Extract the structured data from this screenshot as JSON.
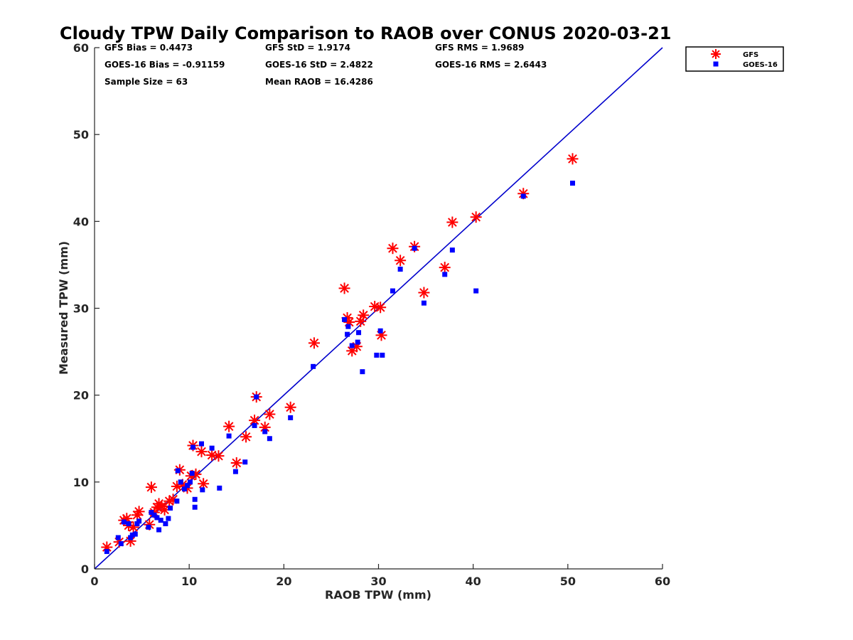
{
  "chart_data": {
    "type": "scatter",
    "title": "Cloudy TPW Daily Comparison to RAOB over CONUS 2020-03-21",
    "xlabel": "RAOB TPW (mm)",
    "ylabel": "Measured TPW (mm)",
    "xlim": [
      0,
      60
    ],
    "ylim": [
      0,
      60
    ],
    "xticks": [
      "0",
      "10",
      "20",
      "30",
      "40",
      "50",
      "60"
    ],
    "yticks": [
      "0",
      "10",
      "20",
      "30",
      "40",
      "50",
      "60"
    ],
    "grid": false,
    "legend_position": "top-right",
    "reference_line": {
      "x": [
        0,
        60
      ],
      "y": [
        0,
        60
      ],
      "color": "#0000cc"
    },
    "stats": [
      [
        "GFS Bias = 0.4473",
        "GFS StD = 1.9174",
        "GFS RMS = 1.9689"
      ],
      [
        "GOES-16 Bias = -0.91159",
        "GOES-16 StD = 2.4822",
        "GOES-16 RMS = 2.6443"
      ],
      [
        "Sample Size = 63",
        "Mean RAOB = 16.4286",
        ""
      ]
    ],
    "series": [
      {
        "name": "GFS",
        "marker": "asterisk",
        "color": "#ff0000",
        "points": [
          [
            1.3,
            2.5
          ],
          [
            2.6,
            3.1
          ],
          [
            3.1,
            5.6
          ],
          [
            3.4,
            5.8
          ],
          [
            3.6,
            5.0
          ],
          [
            3.8,
            3.2
          ],
          [
            4.1,
            4.8
          ],
          [
            4.5,
            6.2
          ],
          [
            4.7,
            6.6
          ],
          [
            5.8,
            5.1
          ],
          [
            6.0,
            9.4
          ],
          [
            6.3,
            6.5
          ],
          [
            6.6,
            7.1
          ],
          [
            6.8,
            7.5
          ],
          [
            7.1,
            7.2
          ],
          [
            7.4,
            6.8
          ],
          [
            7.9,
            7.8
          ],
          [
            8.3,
            8.0
          ],
          [
            8.7,
            9.5
          ],
          [
            9.0,
            11.4
          ],
          [
            9.3,
            9.7
          ],
          [
            9.8,
            9.3
          ],
          [
            10.2,
            10.7
          ],
          [
            10.4,
            14.2
          ],
          [
            10.7,
            10.9
          ],
          [
            11.3,
            13.5
          ],
          [
            11.5,
            9.8
          ],
          [
            12.4,
            13.1
          ],
          [
            13.1,
            13.0
          ],
          [
            14.2,
            16.4
          ],
          [
            15.0,
            12.2
          ],
          [
            16.0,
            15.2
          ],
          [
            16.9,
            17.1
          ],
          [
            17.1,
            19.8
          ],
          [
            18.0,
            16.3
          ],
          [
            18.5,
            17.8
          ],
          [
            20.7,
            18.6
          ],
          [
            23.2,
            26.0
          ],
          [
            26.4,
            32.3
          ],
          [
            26.7,
            28.9
          ],
          [
            26.9,
            28.4
          ],
          [
            27.2,
            25.1
          ],
          [
            27.7,
            25.6
          ],
          [
            28.1,
            28.5
          ],
          [
            28.4,
            29.2
          ],
          [
            29.6,
            30.2
          ],
          [
            30.2,
            30.1
          ],
          [
            30.3,
            26.9
          ],
          [
            31.5,
            36.9
          ],
          [
            32.3,
            35.5
          ],
          [
            33.8,
            37.1
          ],
          [
            34.8,
            31.8
          ],
          [
            37.0,
            34.7
          ],
          [
            37.8,
            39.9
          ],
          [
            40.3,
            40.5
          ],
          [
            45.3,
            43.2
          ],
          [
            50.5,
            47.2
          ]
        ]
      },
      {
        "name": "GOES-16",
        "marker": "square",
        "color": "#0000ff",
        "points": [
          [
            1.3,
            2.0
          ],
          [
            2.5,
            3.6
          ],
          [
            2.8,
            2.9
          ],
          [
            3.1,
            5.4
          ],
          [
            3.6,
            5.2
          ],
          [
            3.8,
            3.6
          ],
          [
            4.0,
            3.9
          ],
          [
            4.3,
            4.0
          ],
          [
            4.5,
            5.2
          ],
          [
            4.7,
            5.5
          ],
          [
            5.7,
            4.8
          ],
          [
            6.0,
            6.5
          ],
          [
            6.3,
            6.2
          ],
          [
            6.6,
            5.9
          ],
          [
            6.8,
            4.5
          ],
          [
            7.0,
            5.6
          ],
          [
            7.5,
            5.2
          ],
          [
            7.8,
            5.8
          ],
          [
            8.0,
            7.0
          ],
          [
            8.7,
            7.8
          ],
          [
            8.8,
            11.3
          ],
          [
            9.1,
            10.0
          ],
          [
            9.5,
            9.2
          ],
          [
            9.8,
            9.6
          ],
          [
            10.1,
            10.0
          ],
          [
            10.3,
            11.0
          ],
          [
            10.4,
            14.0
          ],
          [
            10.6,
            8.0
          ],
          [
            10.6,
            7.1
          ],
          [
            11.3,
            14.4
          ],
          [
            11.4,
            9.1
          ],
          [
            12.4,
            13.9
          ],
          [
            13.2,
            9.3
          ],
          [
            14.2,
            15.3
          ],
          [
            14.9,
            11.2
          ],
          [
            15.9,
            12.3
          ],
          [
            16.9,
            16.5
          ],
          [
            17.1,
            19.8
          ],
          [
            18.0,
            15.8
          ],
          [
            18.5,
            15.0
          ],
          [
            20.7,
            17.4
          ],
          [
            23.1,
            23.3
          ],
          [
            26.4,
            28.7
          ],
          [
            26.7,
            27.0
          ],
          [
            26.8,
            27.9
          ],
          [
            27.2,
            25.7
          ],
          [
            27.8,
            26.1
          ],
          [
            27.9,
            27.2
          ],
          [
            28.3,
            22.7
          ],
          [
            29.8,
            24.6
          ],
          [
            30.2,
            27.4
          ],
          [
            30.4,
            24.6
          ],
          [
            31.5,
            32.0
          ],
          [
            32.3,
            34.5
          ],
          [
            33.8,
            36.9
          ],
          [
            34.8,
            30.6
          ],
          [
            37.0,
            33.9
          ],
          [
            37.8,
            36.7
          ],
          [
            40.3,
            32.0
          ],
          [
            45.3,
            42.9
          ],
          [
            50.5,
            44.4
          ]
        ]
      }
    ]
  }
}
